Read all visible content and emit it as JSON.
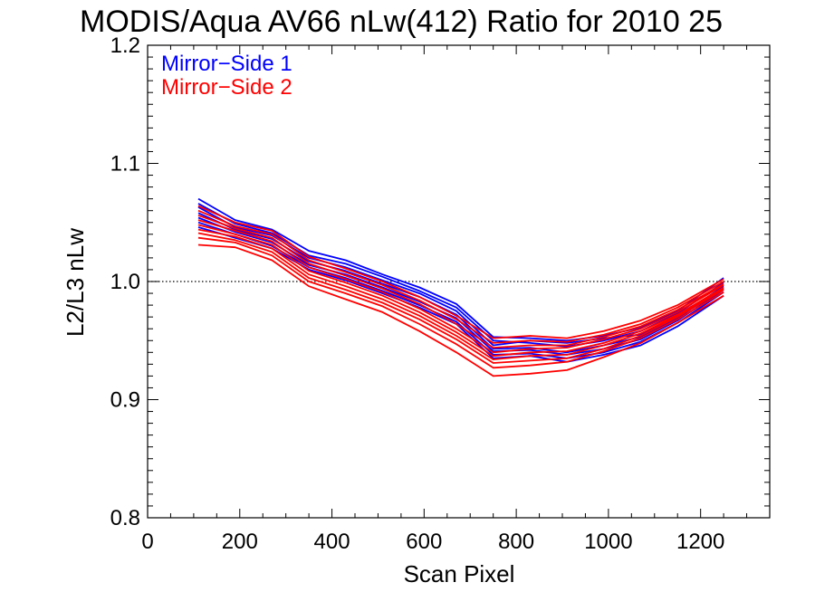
{
  "chart_data": {
    "type": "line",
    "title": "MODIS/Aqua AV66 nLw(412) Ratio for 2010 25",
    "xlabel": "Scan Pixel",
    "ylabel": "L2/L3 nLw",
    "xlim": [
      0,
      1350
    ],
    "ylim": [
      0.8,
      1.2
    ],
    "x_ticks": [
      0,
      200,
      400,
      600,
      800,
      1000,
      1200
    ],
    "x_tick_labels": [
      "0",
      "200",
      "400",
      "600",
      "800",
      "1000",
      "1200"
    ],
    "y_ticks": [
      0.8,
      0.9,
      1.0,
      1.1,
      1.2
    ],
    "y_tick_labels": [
      "0.8",
      "0.9",
      "1.0",
      "1.1",
      "1.2"
    ],
    "reference_line": {
      "y": 1.0,
      "style": "dotted"
    },
    "legend_position": "top-left",
    "legend": [
      {
        "label": "Mirror−Side 1",
        "color": "#0000ff"
      },
      {
        "label": "Mirror−Side 2",
        "color": "#ff0000"
      }
    ],
    "x": [
      110,
      190,
      270,
      350,
      430,
      510,
      590,
      670,
      750,
      830,
      910,
      990,
      1070,
      1150,
      1250
    ],
    "series": [
      {
        "color": "#0000ff",
        "values": [
          1.066,
          1.049,
          1.041,
          1.022,
          1.015,
          1.004,
          0.992,
          0.978,
          0.95,
          0.948,
          0.945,
          0.95,
          0.958,
          0.973,
          0.999
        ]
      },
      {
        "color": "#0000ff",
        "values": [
          1.058,
          1.044,
          1.036,
          1.017,
          1.009,
          0.998,
          0.987,
          0.972,
          0.943,
          0.944,
          0.94,
          0.946,
          0.953,
          0.969,
          0.995
        ]
      },
      {
        "color": "#0000ff",
        "values": [
          1.05,
          1.04,
          1.03,
          1.012,
          1.003,
          0.992,
          0.98,
          0.966,
          0.938,
          0.939,
          0.935,
          0.94,
          0.949,
          0.965,
          0.991
        ]
      },
      {
        "color": "#0000ff",
        "values": [
          1.063,
          1.046,
          1.039,
          1.02,
          1.012,
          1.001,
          0.99,
          0.975,
          0.946,
          0.95,
          0.948,
          0.952,
          0.955,
          0.97,
          0.996
        ]
      },
      {
        "color": "#0000ff",
        "values": [
          1.054,
          1.042,
          1.033,
          1.014,
          1.006,
          0.995,
          0.983,
          0.969,
          0.941,
          0.942,
          0.938,
          0.943,
          0.951,
          0.967,
          0.993
        ]
      },
      {
        "color": "#0000ff",
        "values": [
          1.07,
          1.052,
          1.044,
          1.026,
          1.018,
          1.006,
          0.995,
          0.981,
          0.953,
          0.952,
          0.95,
          0.954,
          0.961,
          0.975,
          1.003
        ]
      },
      {
        "color": "#0000ff",
        "values": [
          1.046,
          1.037,
          1.028,
          1.01,
          1.001,
          0.99,
          0.978,
          0.964,
          0.935,
          0.937,
          0.932,
          0.938,
          0.946,
          0.962,
          0.988
        ]
      },
      {
        "color": "#ff0000",
        "values": [
          1.06,
          1.047,
          1.04,
          1.018,
          1.008,
          0.997,
          0.984,
          0.968,
          0.948,
          0.95,
          0.949,
          0.955,
          0.964,
          0.978,
          1.0
        ]
      },
      {
        "color": "#ff0000",
        "values": [
          1.052,
          1.043,
          1.034,
          1.012,
          1.002,
          0.991,
          0.977,
          0.96,
          0.94,
          0.943,
          0.944,
          0.951,
          0.96,
          0.974,
          0.997
        ]
      },
      {
        "color": "#ff0000",
        "values": [
          1.044,
          1.038,
          1.028,
          1.006,
          0.996,
          0.985,
          0.971,
          0.954,
          0.934,
          0.937,
          0.938,
          0.946,
          0.956,
          0.971,
          0.994
        ]
      },
      {
        "color": "#ff0000",
        "values": [
          1.037,
          1.033,
          1.022,
          1.0,
          0.99,
          0.979,
          0.964,
          0.947,
          0.927,
          0.929,
          0.932,
          0.941,
          0.952,
          0.968,
          0.991
        ]
      },
      {
        "color": "#ff0000",
        "values": [
          1.064,
          1.05,
          1.043,
          1.021,
          1.011,
          1.0,
          0.987,
          0.971,
          0.952,
          0.954,
          0.952,
          0.958,
          0.967,
          0.98,
          1.002
        ]
      },
      {
        "color": "#ff0000",
        "values": [
          1.048,
          1.04,
          1.031,
          1.009,
          0.999,
          0.988,
          0.974,
          0.957,
          0.937,
          0.94,
          0.941,
          0.948,
          0.958,
          0.972,
          0.995
        ]
      },
      {
        "color": "#ff0000",
        "values": [
          1.031,
          1.029,
          1.018,
          0.996,
          0.985,
          0.974,
          0.958,
          0.94,
          0.92,
          0.922,
          0.925,
          0.936,
          0.948,
          0.965,
          0.988
        ]
      },
      {
        "color": "#ff0000",
        "values": [
          1.056,
          1.045,
          1.037,
          1.015,
          1.005,
          0.994,
          0.981,
          0.964,
          0.944,
          0.946,
          0.946,
          0.953,
          0.962,
          0.976,
          0.998
        ]
      },
      {
        "color": "#ff0000",
        "values": [
          1.041,
          1.035,
          1.025,
          1.003,
          0.993,
          0.982,
          0.968,
          0.951,
          0.931,
          0.933,
          0.935,
          0.943,
          0.954,
          0.97,
          0.993
        ]
      }
    ]
  }
}
